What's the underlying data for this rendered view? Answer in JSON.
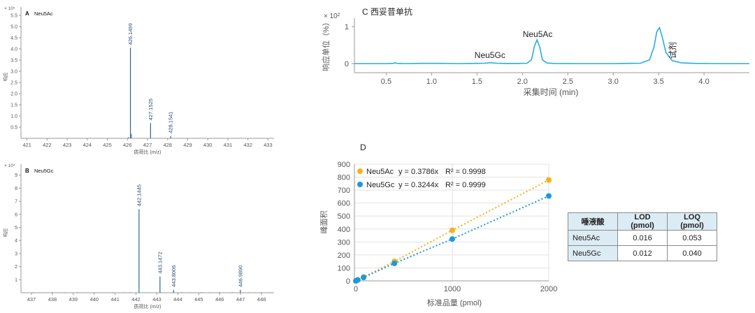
{
  "chart_data": [
    {
      "type": "bar",
      "panel": "A",
      "title": "Neu5Ac",
      "scale_label": "× 10⁵",
      "ylabel": "响应",
      "xlabel": "质荷比 (m/z)",
      "xlim": [
        420.7,
        433.3
      ],
      "ylim": [
        0,
        5.5
      ],
      "x_ticks": [
        421,
        422,
        423,
        424,
        425,
        426,
        427,
        428,
        429,
        430,
        431,
        432,
        433
      ],
      "y_ticks": [
        "0.5",
        "1.0",
        "1.5",
        "2.0",
        "2.5",
        "3.0",
        "3.5",
        "4.0",
        "4.5",
        "5.0",
        "5.5"
      ],
      "peaks": [
        {
          "mz": 426.1499,
          "intensity": 4.05,
          "label": "426.1499"
        },
        {
          "mz": 427.1525,
          "intensity": 0.68,
          "label": "427.1525"
        },
        {
          "mz": 428.1541,
          "intensity": 0.1,
          "label": "428.1541"
        }
      ],
      "minor_peaks": [
        {
          "mz": 426.2,
          "intensity": 0.2
        },
        {
          "mz": 426.05,
          "intensity": 0.06
        }
      ]
    },
    {
      "type": "bar",
      "panel": "B",
      "title": "Neu5Gc",
      "scale_label": "× 10⁴",
      "ylabel": "响应",
      "xlabel": "质荷比 (m/z)",
      "xlim": [
        436.5,
        448.6
      ],
      "ylim": [
        0,
        9.2
      ],
      "x_ticks": [
        437,
        438,
        439,
        440,
        441,
        442,
        443,
        444,
        445,
        446,
        447,
        448
      ],
      "y_ticks": [
        "1",
        "2",
        "3",
        "4",
        "5",
        "6",
        "7",
        "8",
        "9"
      ],
      "peaks": [
        {
          "mz": 442.1445,
          "intensity": 6.4,
          "label": "442.1445"
        },
        {
          "mz": 443.1472,
          "intensity": 1.25,
          "label": "443.1472"
        },
        {
          "mz": 443.8006,
          "intensity": 0.22,
          "label": "443.8006"
        },
        {
          "mz": 446.989,
          "intensity": 0.22,
          "label": "446.9890"
        }
      ],
      "minor_peaks": [
        {
          "mz": 437.1,
          "intensity": 0.04
        },
        {
          "mz": 438.0,
          "intensity": 0.04
        },
        {
          "mz": 438.6,
          "intensity": 0.03
        },
        {
          "mz": 439.2,
          "intensity": 0.04
        },
        {
          "mz": 440.0,
          "intensity": 0.03
        },
        {
          "mz": 440.9,
          "intensity": 0.04
        },
        {
          "mz": 441.4,
          "intensity": 0.03
        },
        {
          "mz": 441.7,
          "intensity": 0.04
        },
        {
          "mz": 444.2,
          "intensity": 0.04
        },
        {
          "mz": 444.6,
          "intensity": 0.03
        },
        {
          "mz": 445.1,
          "intensity": 0.04
        },
        {
          "mz": 445.5,
          "intensity": 0.03
        },
        {
          "mz": 446.0,
          "intensity": 0.04
        },
        {
          "mz": 446.6,
          "intensity": 0.04
        },
        {
          "mz": 447.4,
          "intensity": 0.03
        },
        {
          "mz": 448.0,
          "intensity": 0.04
        },
        {
          "mz": 448.4,
          "intensity": 0.03
        }
      ]
    },
    {
      "type": "line",
      "panel": "C",
      "title": "C 西妥昔单抗",
      "scale_label": "× 10²",
      "ylabel": "响应单位（%）",
      "xlabel": "采集时间 (min)",
      "xlim": [
        0.15,
        4.5
      ],
      "ylim": [
        -0.1,
        1.1
      ],
      "x_ticks": [
        "0.5",
        "1.0",
        "1.5",
        "2.0",
        "2.5",
        "3.0",
        "3.5",
        "4.0"
      ],
      "y_ticks": [
        "0",
        "1"
      ],
      "color": "#29abe2",
      "series": [
        {
          "x": [
            0.15,
            0.3,
            0.5,
            0.58,
            0.6,
            0.62,
            0.7,
            0.9,
            1.1,
            1.3,
            1.5,
            1.58,
            1.65,
            1.72,
            1.8,
            1.95,
            2.05,
            2.1,
            2.13,
            2.16,
            2.19,
            2.22,
            2.27,
            2.35,
            2.6,
            3.0,
            3.3,
            3.4,
            3.45,
            3.48,
            3.51,
            3.54,
            3.58,
            3.65,
            3.75,
            3.9,
            4.2,
            4.5
          ],
          "y": [
            0,
            0,
            0,
            0.005,
            0.02,
            0.005,
            0,
            0.005,
            0.005,
            0,
            0.005,
            0.01,
            0.025,
            0.01,
            0.003,
            0.003,
            0.01,
            0.1,
            0.45,
            0.64,
            0.45,
            0.1,
            0.015,
            0.003,
            0,
            0,
            0.01,
            0.1,
            0.45,
            0.86,
            0.97,
            0.72,
            0.3,
            0.08,
            0.02,
            0.005,
            0,
            0
          ]
        }
      ],
      "annotations": [
        {
          "text": "Neu5Gc",
          "x": 1.65
        },
        {
          "text": "Neu5Ac",
          "x": 2.16
        },
        {
          "text": "试剂",
          "x": 3.51
        }
      ]
    },
    {
      "type": "scatter",
      "panel": "D",
      "title": "D",
      "ylabel": "峰面积",
      "xlabel": "标准品量 (pmol)",
      "xlim": [
        0,
        2000
      ],
      "ylim": [
        0,
        900
      ],
      "x_ticks": [
        "0",
        "1000",
        "2000"
      ],
      "y_ticks": [
        "0",
        "100",
        "200",
        "300",
        "400",
        "500",
        "600",
        "700",
        "800",
        "900"
      ],
      "grid": true,
      "series": [
        {
          "name": "Neu5Ac",
          "equation": "y = 0.3786x",
          "r2": "R² = 0.9998",
          "color": "#f5b21a",
          "x": [
            0,
            20,
            80,
            400,
            1000,
            2000
          ],
          "y": [
            0,
            8,
            30,
            150,
            390,
            778
          ]
        },
        {
          "name": "Neu5Gc",
          "equation": "y = 0.3244x",
          "r2": "R² = 0.9999",
          "color": "#1a9ad9",
          "x": [
            0,
            20,
            80,
            400,
            1000,
            2000
          ],
          "y": [
            0,
            7,
            26,
            135,
            323,
            655
          ]
        }
      ]
    }
  ],
  "table": {
    "headers": [
      "唾液酸",
      "LOD (pmol)",
      "LOQ (pmol)"
    ],
    "rows": [
      [
        "Neu5Ac",
        "0.016",
        "0.053"
      ],
      [
        "Neu5Gc",
        "0.012",
        "0.040"
      ]
    ]
  }
}
